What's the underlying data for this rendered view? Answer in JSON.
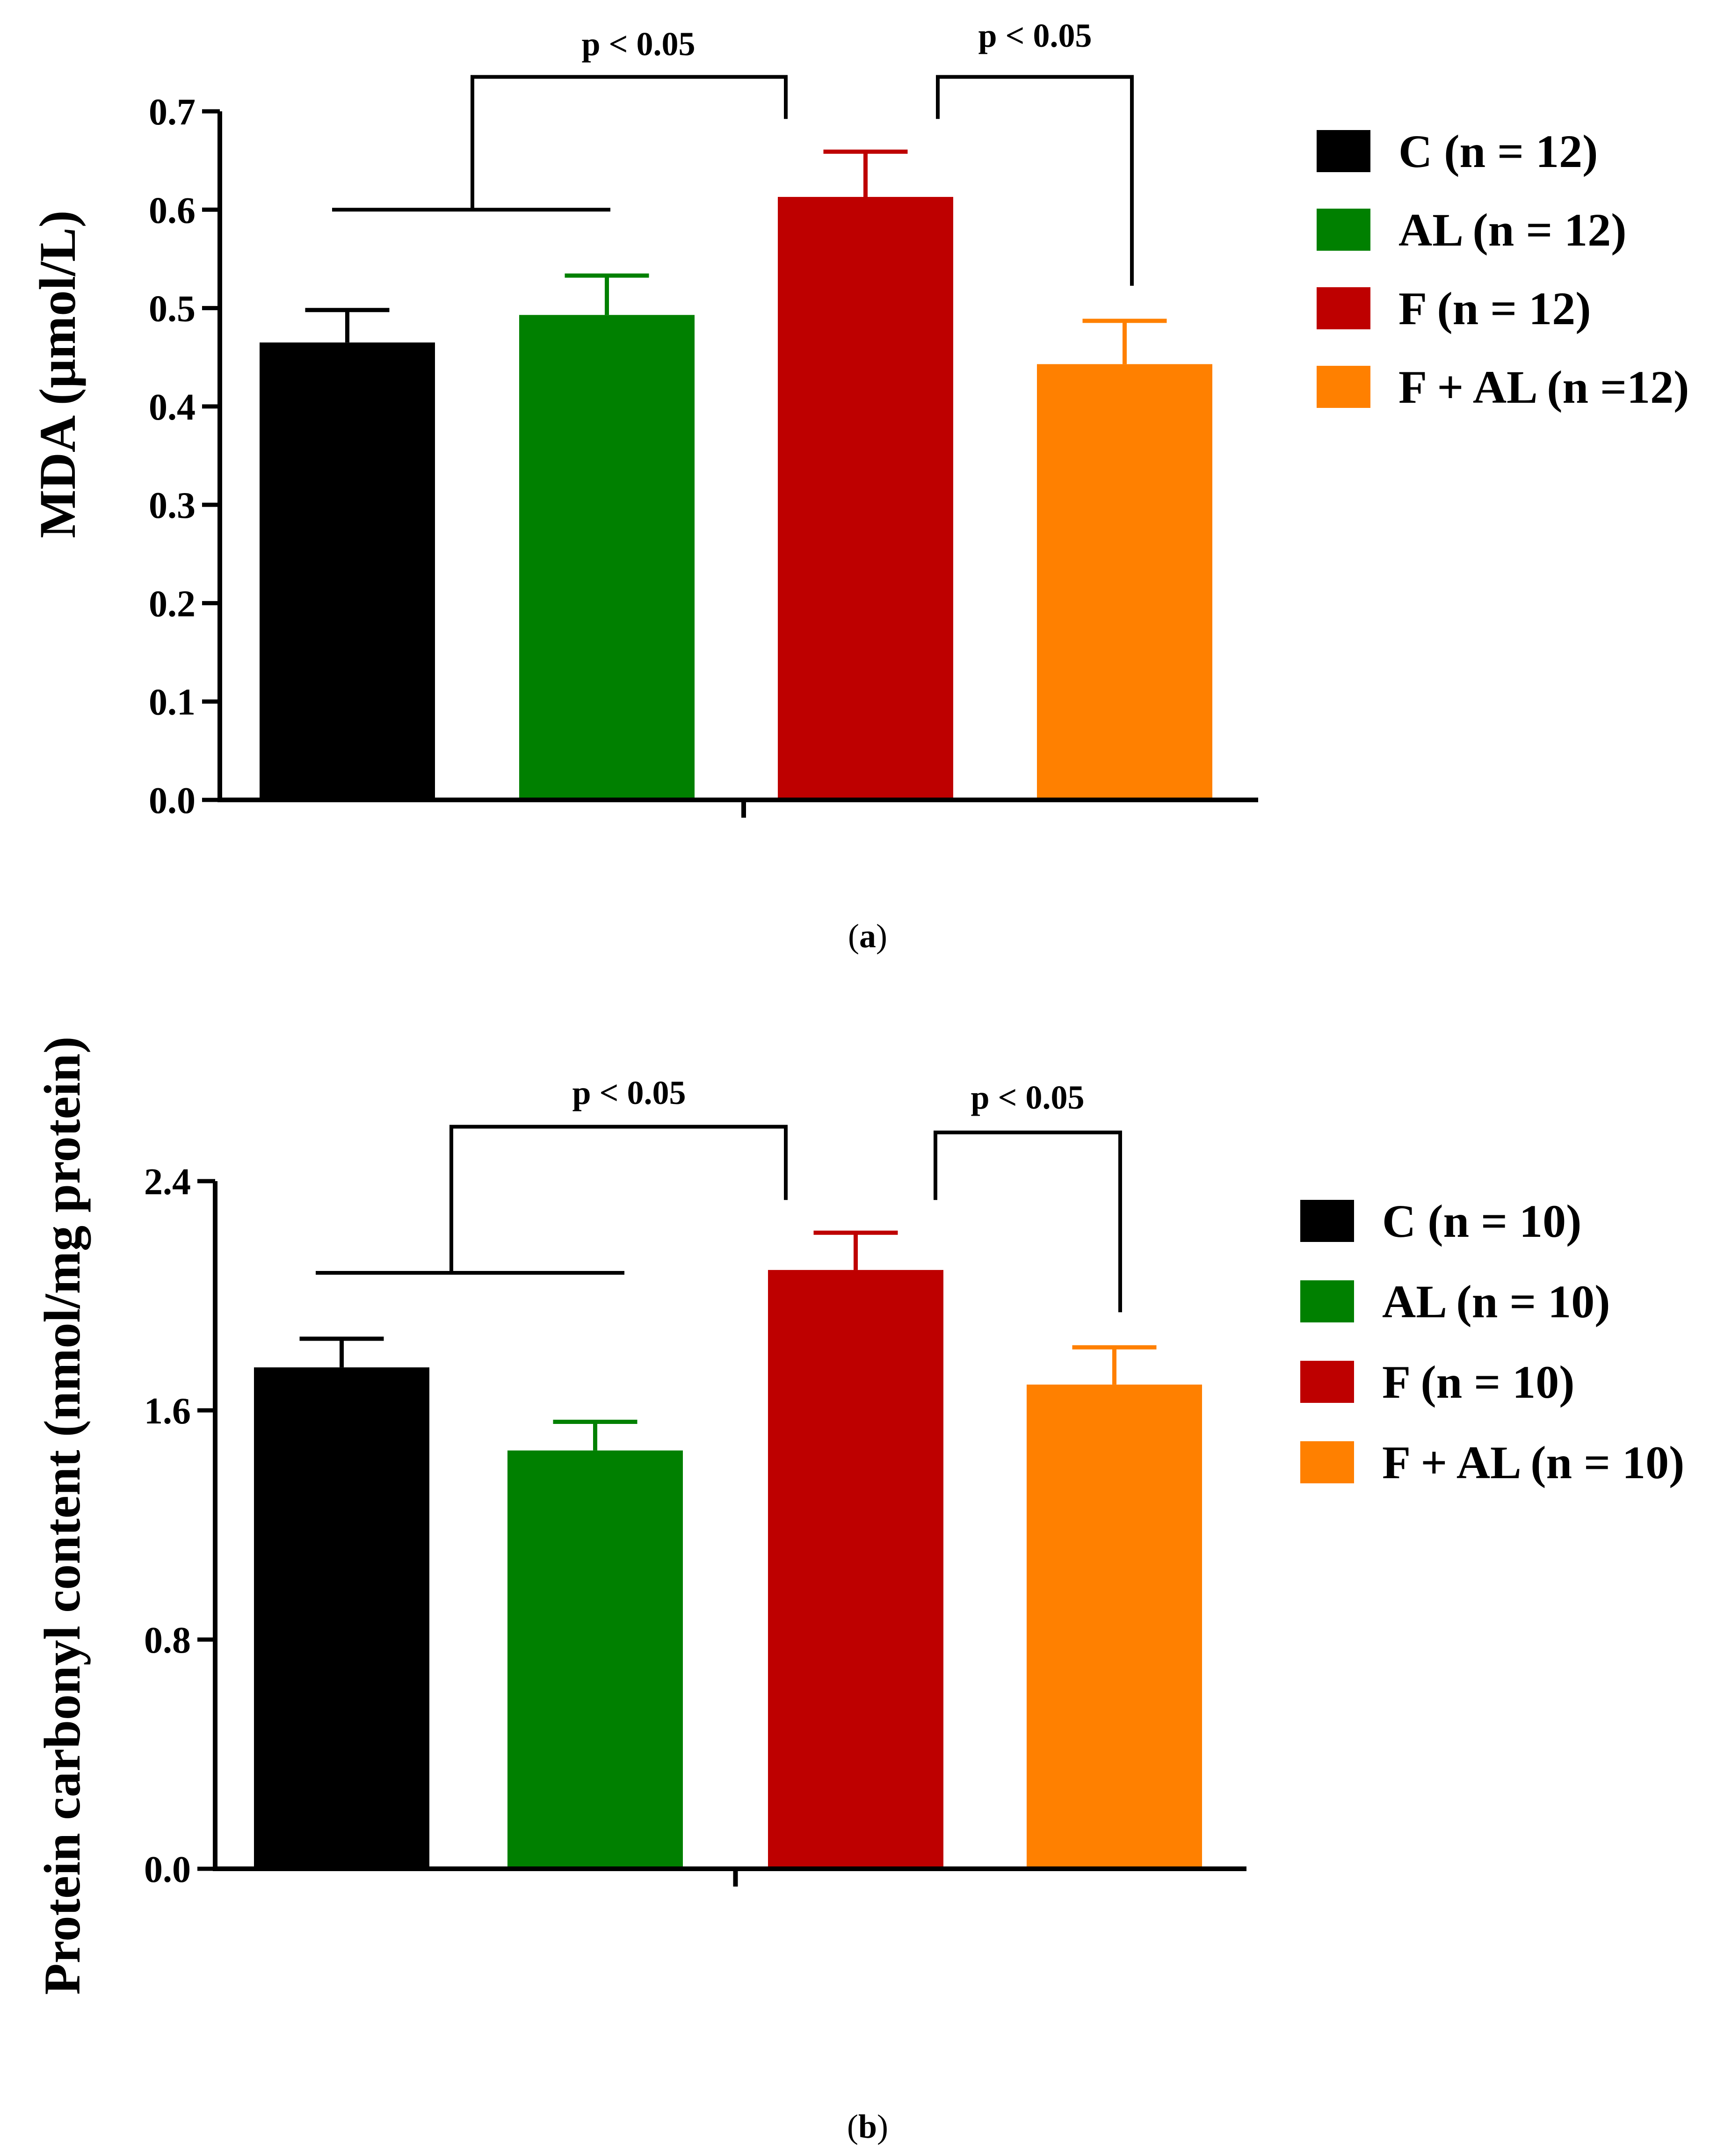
{
  "chart_data": [
    {
      "type": "bar",
      "panel_label_prefix": "(",
      "panel_label": "a",
      "panel_label_suffix": ")",
      "ylabel": "MDA (μmol/L)",
      "xlabel": "",
      "ylim": [
        0,
        0.7
      ],
      "yticks": [
        0.0,
        0.1,
        0.2,
        0.3,
        0.4,
        0.5,
        0.6,
        0.7
      ],
      "ytick_labels": [
        "0.0",
        "0.1",
        "0.2",
        "0.3",
        "0.4",
        "0.5",
        "0.6",
        "0.7"
      ],
      "categories": [
        "C",
        "AL",
        "F",
        "F + AL"
      ],
      "values": [
        0.465,
        0.493,
        0.613,
        0.443
      ],
      "errors": [
        0.033,
        0.04,
        0.046,
        0.044
      ],
      "colors": [
        "#000000",
        "#008000",
        "#be0000",
        "#ff8000"
      ],
      "legend": [
        "C (n = 12)",
        "AL (n = 12)",
        "F (n = 12)",
        "F + AL (n =12)"
      ],
      "legend_position": "right",
      "annotations": [
        {
          "text": "p < 0.05",
          "compare": "C, AL vs F",
          "line_level": 0.6,
          "bracket_top": 0.735
        },
        {
          "text": "p < 0.05",
          "compare": "F vs F + AL",
          "bracket_top": 0.735
        }
      ]
    },
    {
      "type": "bar",
      "panel_label_prefix": "(",
      "panel_label": "b",
      "panel_label_suffix": ")",
      "ylabel": "Protein carbonyl content (nmol/mg protein)",
      "xlabel": "",
      "ylim": [
        0,
        2.4
      ],
      "yticks": [
        0.0,
        0.8,
        1.6,
        2.4
      ],
      "ytick_labels": [
        "0.0",
        "0.8",
        "1.6",
        "2.4"
      ],
      "categories": [
        "C",
        "AL",
        "F",
        "F + AL"
      ],
      "values": [
        1.75,
        1.46,
        2.09,
        1.69
      ],
      "errors": [
        0.1,
        0.1,
        0.13,
        0.13
      ],
      "colors": [
        "#000000",
        "#008000",
        "#be0000",
        "#ff8000"
      ],
      "legend": [
        "C (n = 10)",
        "AL (n = 10)",
        "F (n = 10)",
        "F + AL (n = 10)"
      ],
      "legend_position": "right",
      "annotations": [
        {
          "text": "p < 0.05",
          "compare": "C, AL vs F",
          "line_level": 2.08,
          "bracket_top": 2.59
        },
        {
          "text": "p < 0.05",
          "compare": "F vs F + AL",
          "bracket_top": 2.57
        }
      ]
    }
  ]
}
